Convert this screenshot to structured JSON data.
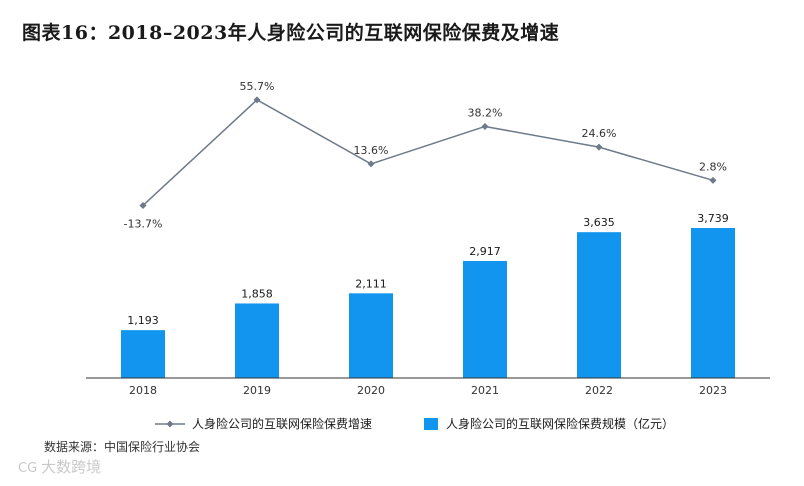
{
  "title": "图表16：2018–2023年人身险公司的互联网保险保费及增速",
  "source": "数据来源：中国保险行业协会",
  "watermark": {
    "logo": "CG",
    "text": "大数跨境"
  },
  "colors": {
    "bar": "#1195ee",
    "line": "#6e7a89",
    "axis": "#333333"
  },
  "chart_data": {
    "type": "bar",
    "categories": [
      "2018",
      "2019",
      "2020",
      "2021",
      "2022",
      "2023"
    ],
    "series": [
      {
        "name": "人身险公司的互联网保险保费规模（亿元）",
        "type": "bar",
        "values": [
          1193,
          1858,
          2111,
          2917,
          3635,
          3739
        ],
        "labels": [
          "1,193",
          "1,858",
          "2,111",
          "2,917",
          "3,635",
          "3,739"
        ]
      },
      {
        "name": "人身险公司的互联网保险保费增速",
        "type": "line",
        "values": [
          -13.7,
          55.7,
          13.6,
          38.2,
          24.6,
          2.8
        ],
        "labels": [
          "-13.7%",
          "55.7%",
          "13.6%",
          "38.2%",
          "24.6%",
          "2.8%"
        ]
      }
    ],
    "legend_position": "bottom-center",
    "grid": false
  }
}
